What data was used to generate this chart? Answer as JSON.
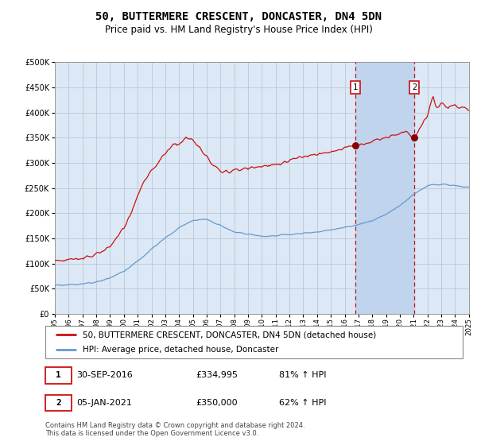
{
  "title": "50, BUTTERMERE CRESCENT, DONCASTER, DN4 5DN",
  "subtitle": "Price paid vs. HM Land Registry's House Price Index (HPI)",
  "title_fontsize": 10,
  "subtitle_fontsize": 8.5,
  "background_color": "#ffffff",
  "plot_bg_color": "#dce8f5",
  "grid_color": "#b8c8d8",
  "hpi_line_color": "#6699cc",
  "price_line_color": "#cc1111",
  "marker_color": "#880000",
  "sale1_x": 21.75,
  "sale1_price": 334995,
  "sale2_x": 26.04,
  "sale2_price": 350000,
  "vspan_color": "#c0d4ee",
  "vline_color": "#cc1111",
  "ylim": [
    0,
    500000
  ],
  "yticks": [
    0,
    50000,
    100000,
    150000,
    200000,
    250000,
    300000,
    350000,
    400000,
    450000,
    500000
  ],
  "xtick_labels": [
    "1995",
    "1996",
    "1997",
    "1998",
    "1999",
    "2000",
    "2001",
    "2002",
    "2003",
    "2004",
    "2005",
    "2006",
    "2007",
    "2008",
    "2009",
    "2010",
    "2011",
    "2012",
    "2013",
    "2014",
    "2015",
    "2016",
    "2017",
    "2018",
    "2019",
    "2020",
    "2021",
    "2022",
    "2023",
    "2024",
    "2025"
  ],
  "legend_price_label": "50, BUTTERMERE CRESCENT, DONCASTER, DN4 5DN (detached house)",
  "legend_hpi_label": "HPI: Average price, detached house, Doncaster",
  "note1_label": "1",
  "note1_date": "30-SEP-2016",
  "note1_price": "£334,995",
  "note1_pct": "81% ↑ HPI",
  "note2_label": "2",
  "note2_date": "05-JAN-2021",
  "note2_price": "£350,000",
  "note2_pct": "62% ↑ HPI",
  "footer": "Contains HM Land Registry data © Crown copyright and database right 2024.\nThis data is licensed under the Open Government Licence v3.0."
}
